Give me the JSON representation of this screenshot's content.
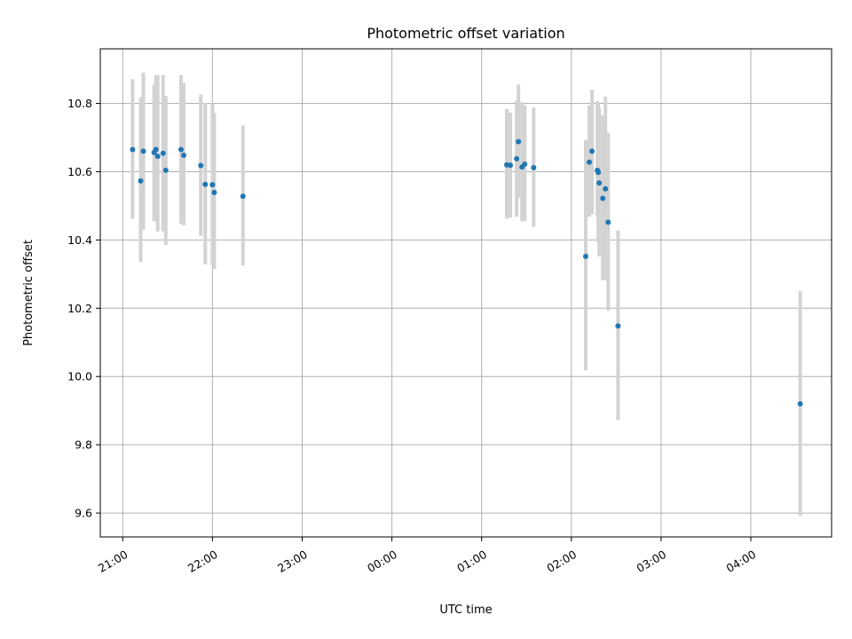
{
  "chart_data": {
    "type": "scatter",
    "title": "Photometric offset variation",
    "xlabel": "UTC time",
    "ylabel": "Photometric offset",
    "x_units": "hours after 21:00 UTC",
    "xlim": [
      -0.25,
      7.9
    ],
    "ylim": [
      9.53,
      10.96
    ],
    "x_ticks": [
      {
        "pos": 0,
        "label": "21:00"
      },
      {
        "pos": 1,
        "label": "22:00"
      },
      {
        "pos": 2,
        "label": "23:00"
      },
      {
        "pos": 3,
        "label": "00:00"
      },
      {
        "pos": 4,
        "label": "01:00"
      },
      {
        "pos": 5,
        "label": "02:00"
      },
      {
        "pos": 6,
        "label": "03:00"
      },
      {
        "pos": 7,
        "label": "04:00"
      }
    ],
    "y_ticks": [
      {
        "pos": 9.6,
        "label": "9.6"
      },
      {
        "pos": 9.8,
        "label": "9.8"
      },
      {
        "pos": 10.0,
        "label": "10.0"
      },
      {
        "pos": 10.2,
        "label": "10.2"
      },
      {
        "pos": 10.4,
        "label": "10.4"
      },
      {
        "pos": 10.6,
        "label": "10.6"
      },
      {
        "pos": 10.8,
        "label": "10.8"
      }
    ],
    "grid": true,
    "colors": {
      "point": "#1f77b4",
      "errorbar": "#d3d3d3",
      "grid": "#b0b0b0"
    },
    "points": [
      {
        "x": 0.11,
        "y": 10.665,
        "lo": 10.462,
        "hi": 10.871
      },
      {
        "x": 0.2,
        "y": 10.573,
        "lo": 10.335,
        "hi": 10.818
      },
      {
        "x": 0.23,
        "y": 10.66,
        "lo": 10.43,
        "hi": 10.89
      },
      {
        "x": 0.35,
        "y": 10.656,
        "lo": 10.455,
        "hi": 10.855
      },
      {
        "x": 0.37,
        "y": 10.665,
        "lo": 10.455,
        "hi": 10.883
      },
      {
        "x": 0.39,
        "y": 10.645,
        "lo": 10.425,
        "hi": 10.883
      },
      {
        "x": 0.45,
        "y": 10.654,
        "lo": 10.425,
        "hi": 10.883
      },
      {
        "x": 0.48,
        "y": 10.604,
        "lo": 10.385,
        "hi": 10.822
      },
      {
        "x": 0.65,
        "y": 10.665,
        "lo": 10.447,
        "hi": 10.883
      },
      {
        "x": 0.68,
        "y": 10.648,
        "lo": 10.443,
        "hi": 10.86
      },
      {
        "x": 0.87,
        "y": 10.618,
        "lo": 10.412,
        "hi": 10.826
      },
      {
        "x": 0.92,
        "y": 10.563,
        "lo": 10.328,
        "hi": 10.802
      },
      {
        "x": 1.0,
        "y": 10.562,
        "lo": 10.325,
        "hi": 10.8
      },
      {
        "x": 1.02,
        "y": 10.539,
        "lo": 10.315,
        "hi": 10.772
      },
      {
        "x": 1.34,
        "y": 10.528,
        "lo": 10.325,
        "hi": 10.735
      },
      {
        "x": 4.28,
        "y": 10.62,
        "lo": 10.462,
        "hi": 10.784
      },
      {
        "x": 4.32,
        "y": 10.619,
        "lo": 10.465,
        "hi": 10.773
      },
      {
        "x": 4.39,
        "y": 10.638,
        "lo": 10.468,
        "hi": 10.808
      },
      {
        "x": 4.41,
        "y": 10.688,
        "lo": 10.523,
        "hi": 10.855
      },
      {
        "x": 4.45,
        "y": 10.614,
        "lo": 10.455,
        "hi": 10.803
      },
      {
        "x": 4.48,
        "y": 10.622,
        "lo": 10.455,
        "hi": 10.795
      },
      {
        "x": 4.58,
        "y": 10.612,
        "lo": 10.438,
        "hi": 10.788
      },
      {
        "x": 5.16,
        "y": 10.352,
        "lo": 10.018,
        "hi": 10.693
      },
      {
        "x": 5.2,
        "y": 10.628,
        "lo": 10.468,
        "hi": 10.795
      },
      {
        "x": 5.23,
        "y": 10.66,
        "lo": 10.475,
        "hi": 10.84
      },
      {
        "x": 5.29,
        "y": 10.604,
        "lo": 10.468,
        "hi": 10.807
      },
      {
        "x": 5.3,
        "y": 10.598,
        "lo": 10.392,
        "hi": 10.8
      },
      {
        "x": 5.31,
        "y": 10.567,
        "lo": 10.352,
        "hi": 10.787
      },
      {
        "x": 5.35,
        "y": 10.522,
        "lo": 10.282,
        "hi": 10.765
      },
      {
        "x": 5.38,
        "y": 10.55,
        "lo": 10.282,
        "hi": 10.82
      },
      {
        "x": 5.41,
        "y": 10.452,
        "lo": 10.193,
        "hi": 10.713
      },
      {
        "x": 5.52,
        "y": 10.148,
        "lo": 9.873,
        "hi": 10.428
      },
      {
        "x": 7.55,
        "y": 9.92,
        "lo": 9.592,
        "hi": 10.25
      }
    ]
  }
}
